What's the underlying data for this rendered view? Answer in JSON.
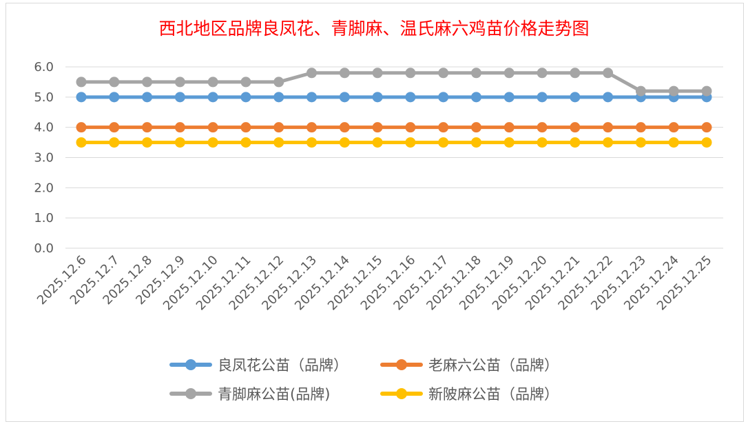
{
  "chart_data": {
    "type": "line",
    "title": "西北地区品牌良凤花、青脚麻、温氏麻六鸡苗价格走势图",
    "xlabel": "",
    "ylabel": "",
    "ylim": [
      0,
      6
    ],
    "yticks": [
      "0.0",
      "1.0",
      "2.0",
      "3.0",
      "4.0",
      "5.0",
      "6.0"
    ],
    "grid": true,
    "legend_position": "bottom",
    "categories": [
      "2025.12.6",
      "2025.12.7",
      "2025.12.8",
      "2025.12.9",
      "2025.12.10",
      "2025.12.11",
      "2025.12.12",
      "2025.12.13",
      "2025.12.14",
      "2025.12.15",
      "2025.12.16",
      "2025.12.17",
      "2025.12.18",
      "2025.12.19",
      "2025.12.20",
      "2025.12.21",
      "2025.12.22",
      "2025.12.23",
      "2025.12.24",
      "2025.12.25"
    ],
    "series": [
      {
        "name": "良凤花公苗（品牌）",
        "color": "#5b9bd5",
        "values": [
          5,
          5,
          5,
          5,
          5,
          5,
          5,
          5,
          5,
          5,
          5,
          5,
          5,
          5,
          5,
          5,
          5,
          5,
          5,
          5
        ]
      },
      {
        "name": "老麻六公苗（品牌）",
        "color": "#ed7d31",
        "values": [
          4,
          4,
          4,
          4,
          4,
          4,
          4,
          4,
          4,
          4,
          4,
          4,
          4,
          4,
          4,
          4,
          4,
          4,
          4,
          4
        ]
      },
      {
        "name": "青脚麻公苗(品牌)",
        "color": "#a5a5a5",
        "values": [
          5.5,
          5.5,
          5.5,
          5.5,
          5.5,
          5.5,
          5.5,
          5.8,
          5.8,
          5.8,
          5.8,
          5.8,
          5.8,
          5.8,
          5.8,
          5.8,
          5.8,
          5.2,
          5.2,
          5.2
        ]
      },
      {
        "name": "新陂麻公苗（品牌）",
        "color": "#ffc000",
        "values": [
          3.5,
          3.5,
          3.5,
          3.5,
          3.5,
          3.5,
          3.5,
          3.5,
          3.5,
          3.5,
          3.5,
          3.5,
          3.5,
          3.5,
          3.5,
          3.5,
          3.5,
          3.5,
          3.5,
          3.5
        ]
      }
    ]
  }
}
